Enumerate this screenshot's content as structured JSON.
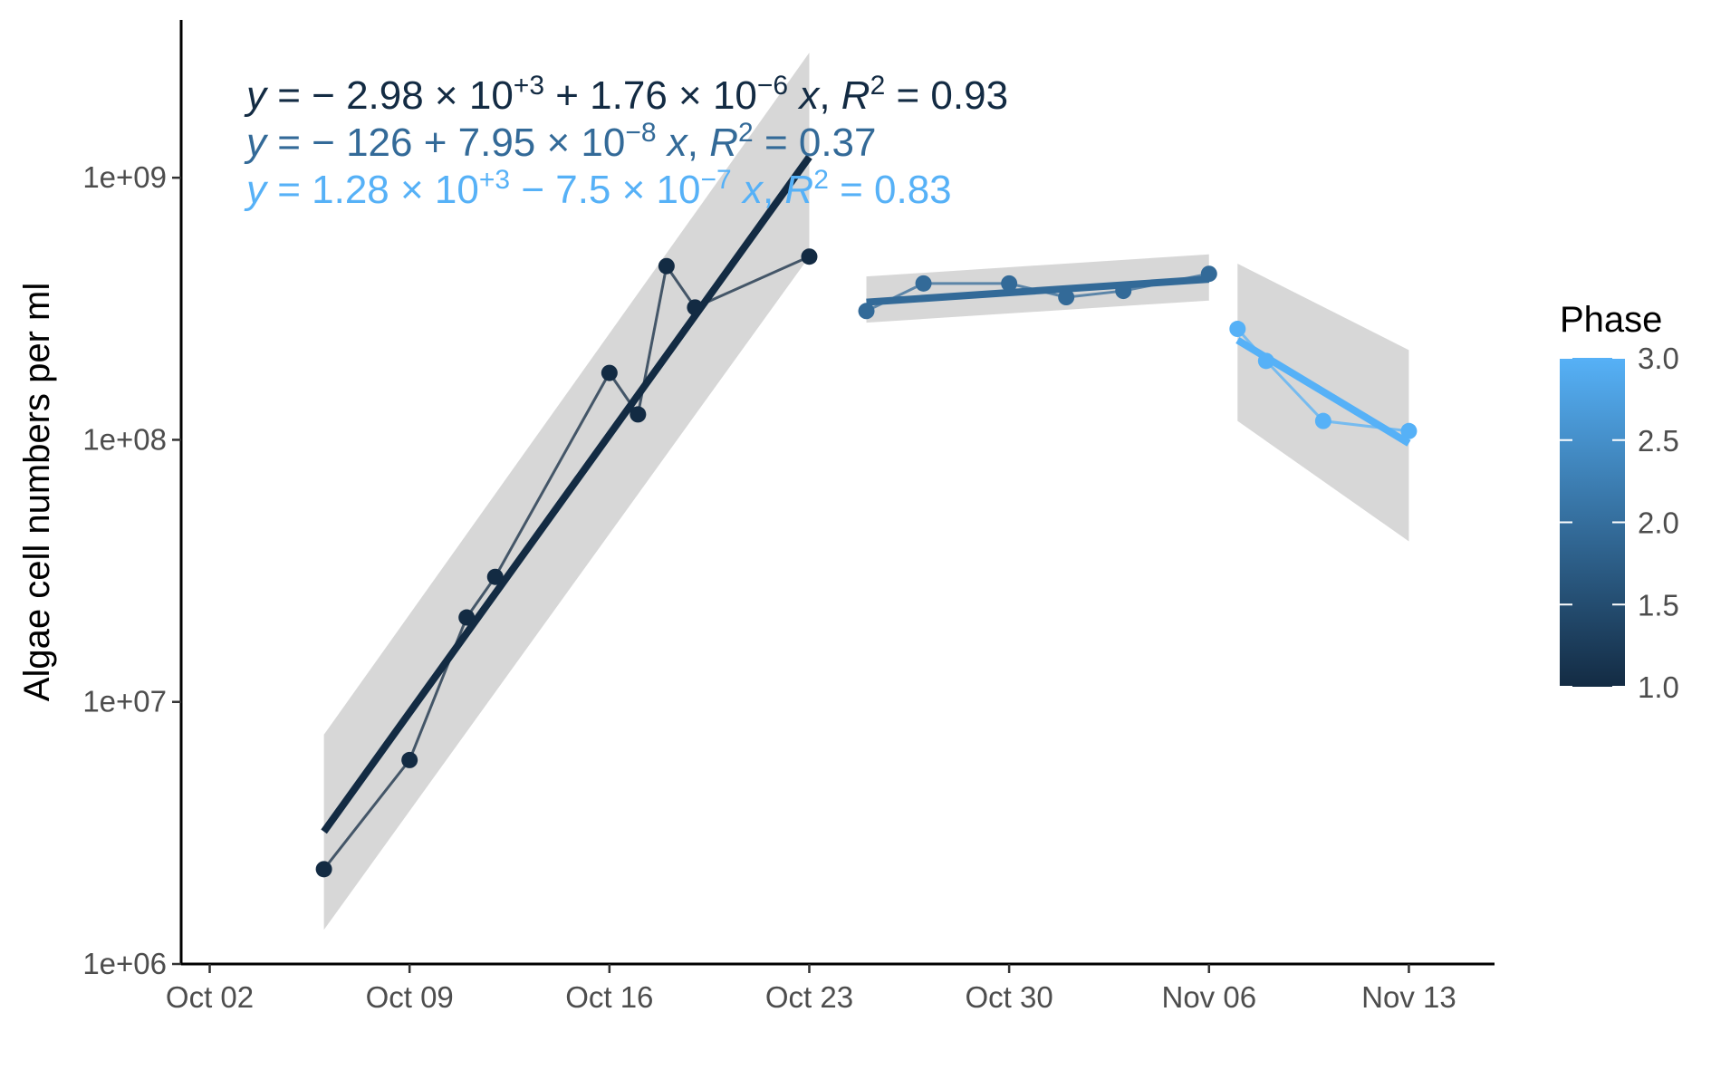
{
  "chart_data": {
    "type": "line",
    "title": "",
    "xlabel": "",
    "ylabel": "Algae cell numbers per ml",
    "y_scale": "log10",
    "ylim": [
      1000000,
      4000000000
    ],
    "xlim": [
      "2020-10-01",
      "2020-11-16"
    ],
    "x_ticks": [
      {
        "date": "2020-10-02",
        "label": "Oct 02"
      },
      {
        "date": "2020-10-09",
        "label": "Oct 09"
      },
      {
        "date": "2020-10-16",
        "label": "Oct 16"
      },
      {
        "date": "2020-10-23",
        "label": "Oct 23"
      },
      {
        "date": "2020-10-30",
        "label": "Oct 30"
      },
      {
        "date": "2020-11-06",
        "label": "Nov 06"
      },
      {
        "date": "2020-11-13",
        "label": "Nov 13"
      }
    ],
    "y_ticks": [
      {
        "value": 1000000,
        "label": "1e+06"
      },
      {
        "value": 10000000,
        "label": "1e+07"
      },
      {
        "value": 100000000,
        "label": "1e+08"
      },
      {
        "value": 1000000000,
        "label": "1e+09"
      }
    ],
    "grid": false,
    "series": [
      {
        "phase": 1,
        "color": "#132b43",
        "x": [
          "2020-10-06",
          "2020-10-09",
          "2020-10-11",
          "2020-10-12",
          "2020-10-16",
          "2020-10-17",
          "2020-10-18",
          "2020-10-19",
          "2020-10-23"
        ],
        "y": [
          2300000,
          6000000,
          21000000,
          30000000,
          180000000,
          125000000,
          460000000,
          320000000,
          500000000
        ],
        "fit": {
          "x": [
            "2020-10-06",
            "2020-10-23"
          ],
          "y": [
            3200000,
            1200000000
          ]
        },
        "band": {
          "x": [
            "2020-10-06",
            "2020-10-23"
          ],
          "upper": [
            7500000,
            3000000000
          ],
          "lower": [
            1350000,
            500000000
          ]
        }
      },
      {
        "phase": 2,
        "color": "#336a98",
        "x": [
          "2020-10-25",
          "2020-10-27",
          "2020-10-30",
          "2020-11-01",
          "2020-11-03",
          "2020-11-06"
        ],
        "y": [
          310000000,
          395000000,
          395000000,
          350000000,
          370000000,
          430000000
        ],
        "fit": {
          "x": [
            "2020-10-25",
            "2020-11-06"
          ],
          "y": [
            335000000,
            410000000
          ]
        },
        "band": {
          "x": [
            "2020-10-25",
            "2020-11-06"
          ],
          "upper": [
            420000000,
            510000000
          ],
          "lower": [
            280000000,
            340000000
          ]
        }
      },
      {
        "phase": 3,
        "color": "#56b1f7",
        "x": [
          "2020-11-07",
          "2020-11-08",
          "2020-11-10",
          "2020-11-13"
        ],
        "y": [
          265000000,
          200000000,
          118000000,
          108000000
        ],
        "fit": {
          "x": [
            "2020-11-07",
            "2020-11-13"
          ],
          "y": [
            240000000,
            97000000
          ]
        },
        "band": {
          "x": [
            "2020-11-07",
            "2020-11-13"
          ],
          "upper": [
            470000000,
            220000000
          ],
          "lower": [
            118000000,
            41000000
          ]
        }
      }
    ],
    "equations": [
      {
        "color": "#132b43",
        "pre": "y",
        "mid1": " = − 2.98 × 10",
        "sup1": "+3",
        "mid2": " + 1.76 × 10",
        "sup2": "−6",
        "mid3": " ",
        "xv": "x",
        "mid4": ", ",
        "rv": "R",
        "sup3": "2",
        "tail": " = 0.93"
      },
      {
        "color": "#336a98",
        "pre": "y",
        "mid1": " = − 126 + 7.95 × 10",
        "sup1": "−8",
        "mid2": "",
        "sup2": "",
        "mid3": " ",
        "xv": "x",
        "mid4": ", ",
        "rv": "R",
        "sup3": "2",
        "tail": " = 0.37"
      },
      {
        "color": "#56b1f7",
        "pre": "y",
        "mid1": " = 1.28 × 10",
        "sup1": "+3",
        "mid2": " − 7.5 × 10",
        "sup2": "−7",
        "mid3": " ",
        "xv": "x",
        "mid4": ", ",
        "rv": "R",
        "sup3": "2",
        "tail": " = 0.83"
      }
    ],
    "legend": {
      "title": "Phase",
      "placement": "right",
      "type": "colorbar",
      "low_color": "#132b43",
      "high_color": "#56b1f7",
      "min": 1.0,
      "max": 3.0,
      "ticks": [
        {
          "value": 1.0,
          "label": "1.0"
        },
        {
          "value": 1.5,
          "label": "1.5"
        },
        {
          "value": 2.0,
          "label": "2.0"
        },
        {
          "value": 2.5,
          "label": "2.5"
        },
        {
          "value": 3.0,
          "label": "3.0"
        }
      ]
    },
    "band_color": "#d3d3d3"
  }
}
